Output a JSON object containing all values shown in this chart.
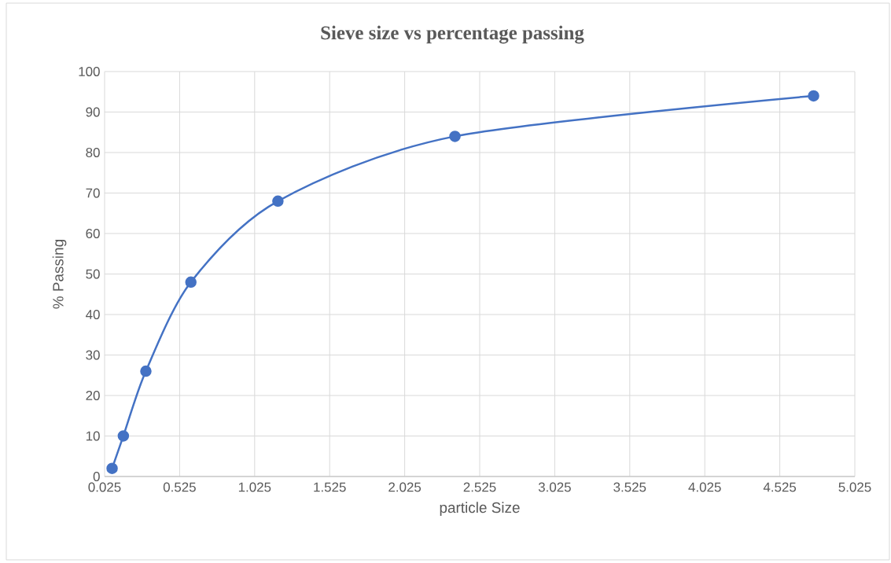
{
  "chart_data": {
    "type": "line",
    "title": "Sieve size vs percentage passing",
    "xlabel": "particle Size",
    "ylabel": "% Passing",
    "x": [
      0.075,
      0.15,
      0.3,
      0.6,
      1.18,
      2.36,
      4.75
    ],
    "series": [
      {
        "color": "#4472c4",
        "values": [
          2,
          10,
          26,
          48,
          68,
          84,
          94
        ]
      }
    ],
    "xlim": [
      0.025,
      5.025
    ],
    "xticks": [
      0.025,
      0.525,
      1.025,
      1.525,
      2.025,
      2.525,
      3.025,
      3.525,
      4.025,
      4.525,
      5.025
    ],
    "ylim": [
      0,
      100
    ],
    "yticks": [
      0,
      10,
      20,
      30,
      40,
      50,
      60,
      70,
      80,
      90,
      100
    ],
    "grid": true,
    "marker": "circle",
    "line_style": "solid"
  }
}
